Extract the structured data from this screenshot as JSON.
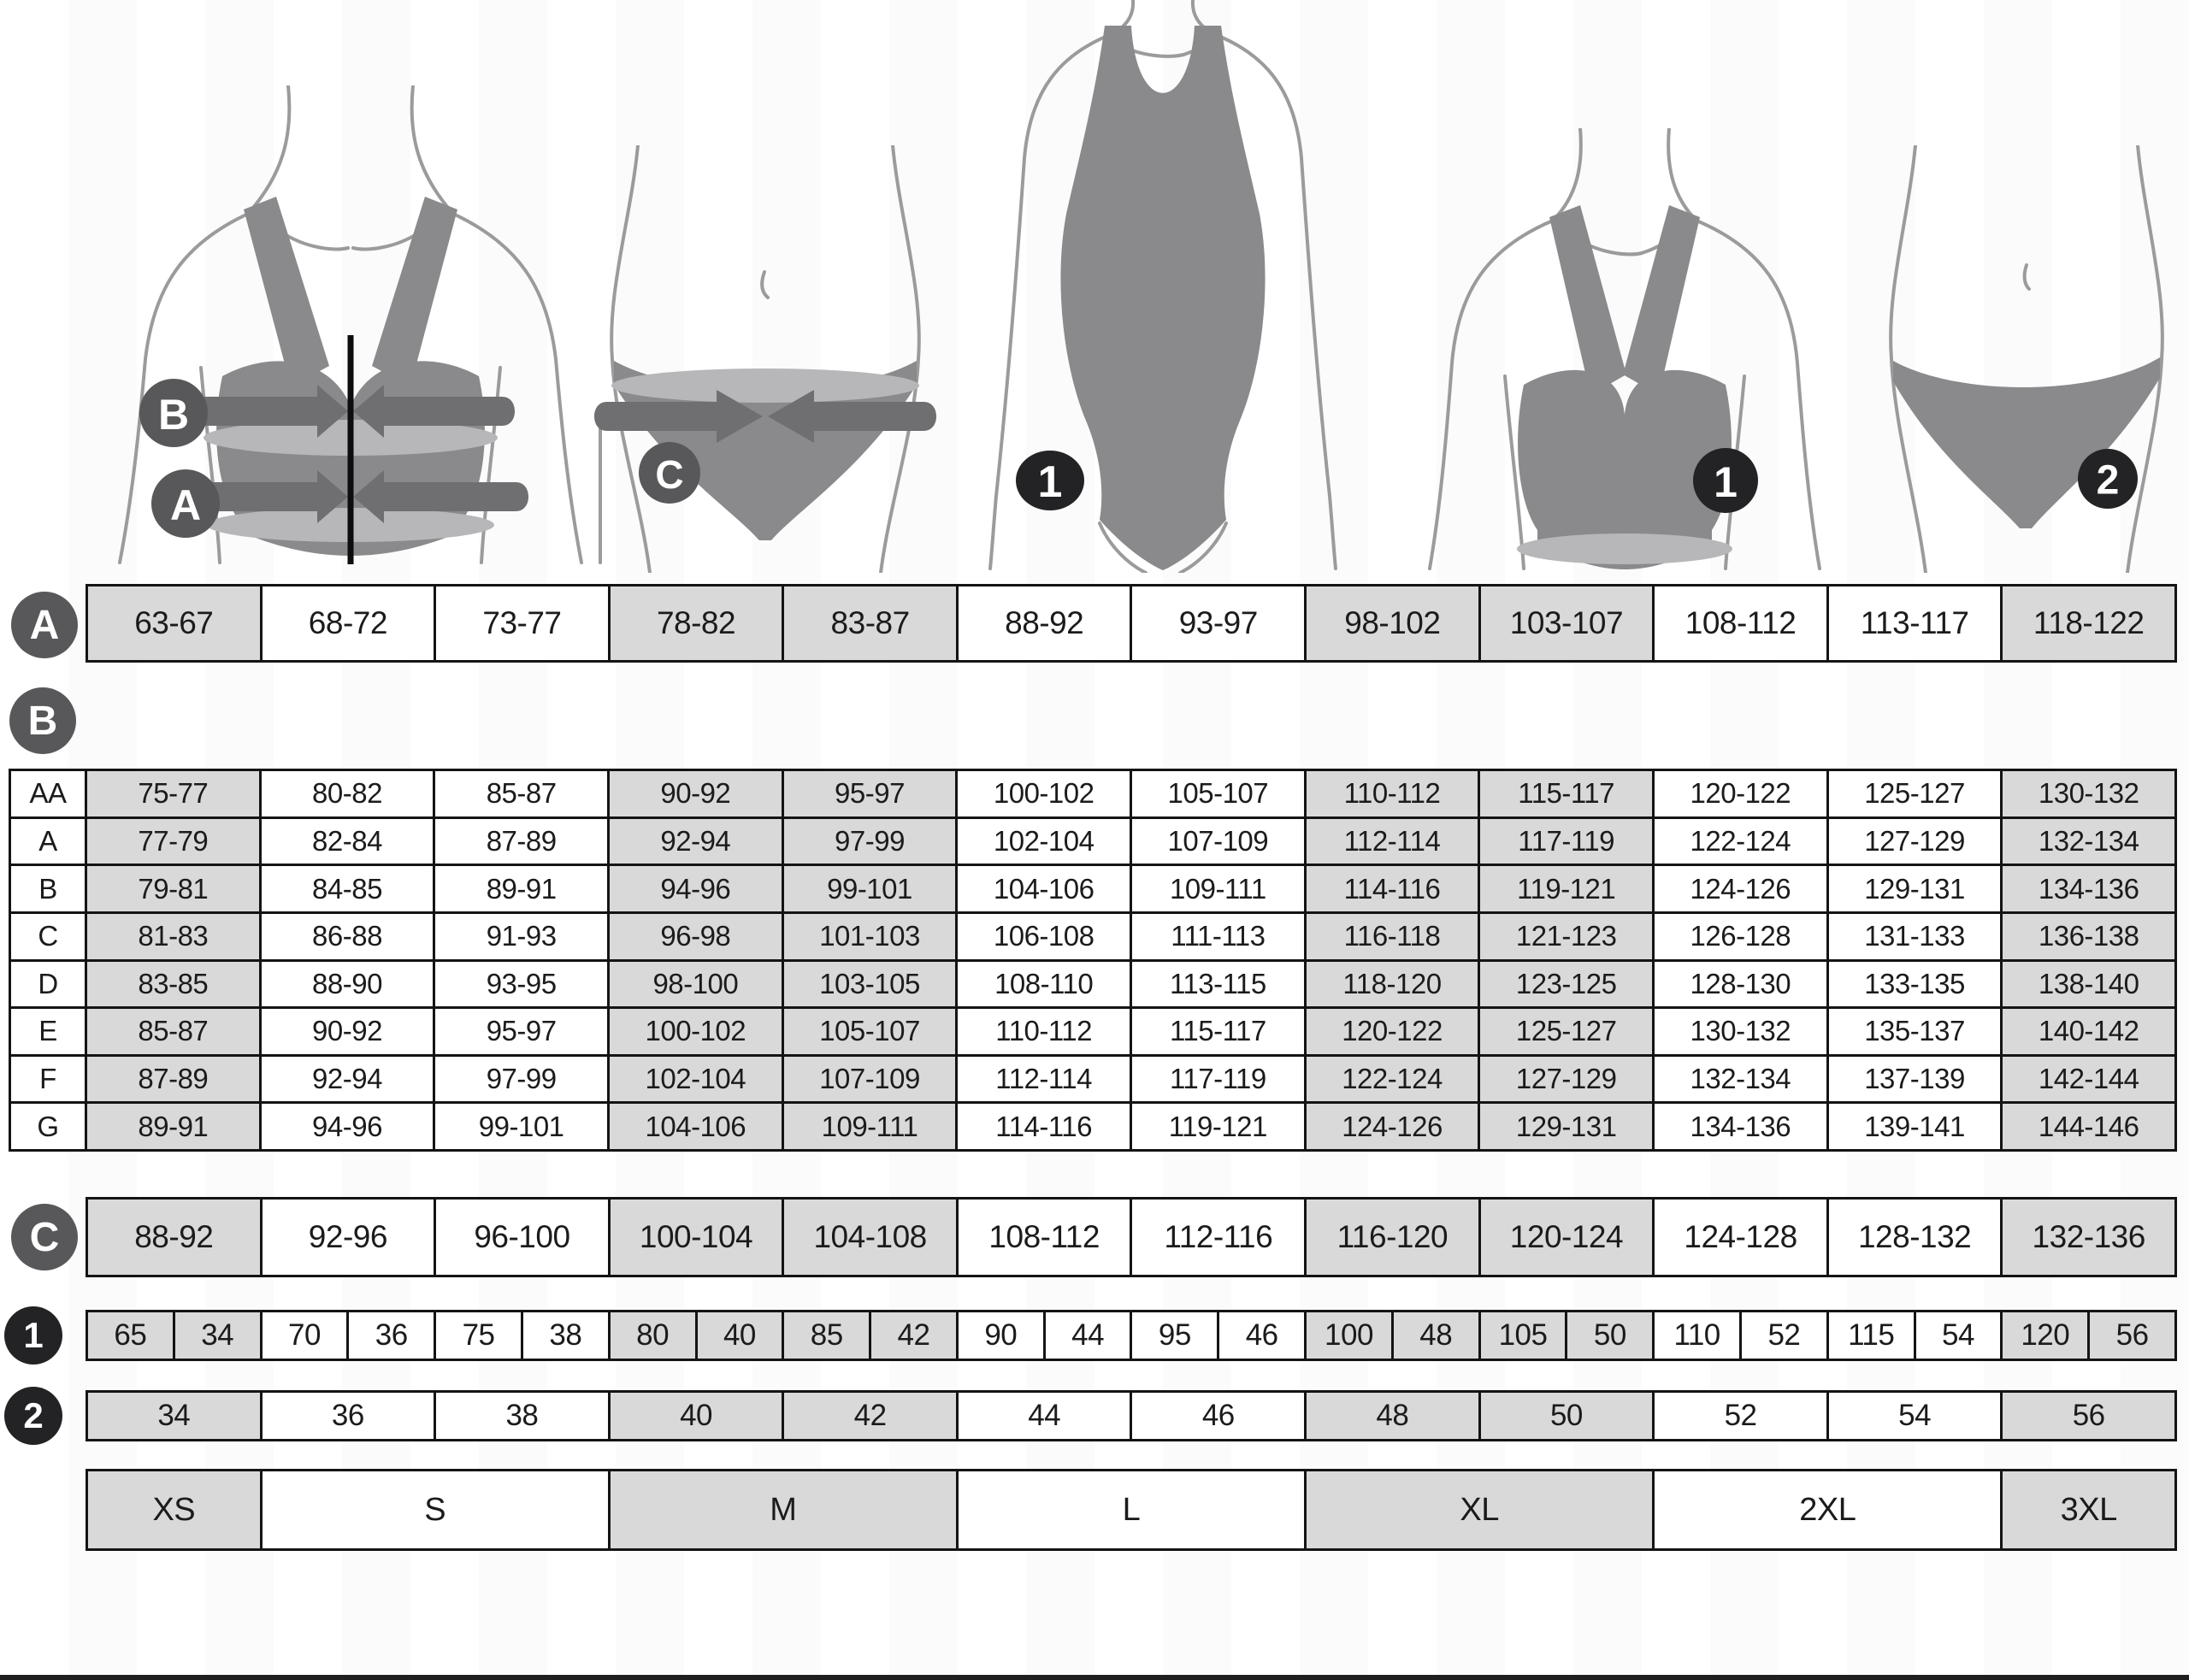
{
  "legend": {
    "a": "A",
    "b": "B",
    "c": "C",
    "one": "1",
    "two": "2"
  },
  "figures": [
    {
      "name": "bra-with-measurement-bands",
      "badges": [
        "B",
        "A"
      ]
    },
    {
      "name": "hips-with-measurement-band",
      "badges": [
        "C"
      ]
    },
    {
      "name": "one-piece-swimsuit",
      "badges": [
        "1"
      ]
    },
    {
      "name": "bra",
      "badges": [
        "1"
      ]
    },
    {
      "name": "briefs",
      "badges": [
        "2"
      ]
    }
  ],
  "tables": {
    "shading": [
      1,
      0,
      0,
      1,
      1,
      0,
      0,
      1,
      1,
      0,
      0,
      1
    ],
    "underbust_row": {
      "label": "A",
      "values": [
        "63-67",
        "68-72",
        "73-77",
        "78-82",
        "83-87",
        "88-92",
        "93-97",
        "98-102",
        "103-107",
        "108-112",
        "113-117",
        "118-122"
      ]
    },
    "cup_table": {
      "label": "B",
      "rows": [
        {
          "label": "AA",
          "values": [
            "75-77",
            "80-82",
            "85-87",
            "90-92",
            "95-97",
            "100-102",
            "105-107",
            "110-112",
            "115-117",
            "120-122",
            "125-127",
            "130-132"
          ]
        },
        {
          "label": "A",
          "values": [
            "77-79",
            "82-84",
            "87-89",
            "92-94",
            "97-99",
            "102-104",
            "107-109",
            "112-114",
            "117-119",
            "122-124",
            "127-129",
            "132-134"
          ]
        },
        {
          "label": "B",
          "values": [
            "79-81",
            "84-85",
            "89-91",
            "94-96",
            "99-101",
            "104-106",
            "109-111",
            "114-116",
            "119-121",
            "124-126",
            "129-131",
            "134-136"
          ]
        },
        {
          "label": "C",
          "values": [
            "81-83",
            "86-88",
            "91-93",
            "96-98",
            "101-103",
            "106-108",
            "111-113",
            "116-118",
            "121-123",
            "126-128",
            "131-133",
            "136-138"
          ]
        },
        {
          "label": "D",
          "values": [
            "83-85",
            "88-90",
            "93-95",
            "98-100",
            "103-105",
            "108-110",
            "113-115",
            "118-120",
            "123-125",
            "128-130",
            "133-135",
            "138-140"
          ]
        },
        {
          "label": "E",
          "values": [
            "85-87",
            "90-92",
            "95-97",
            "100-102",
            "105-107",
            "110-112",
            "115-117",
            "120-122",
            "125-127",
            "130-132",
            "135-137",
            "140-142"
          ]
        },
        {
          "label": "F",
          "values": [
            "87-89",
            "92-94",
            "97-99",
            "102-104",
            "107-109",
            "112-114",
            "117-119",
            "122-124",
            "127-129",
            "132-134",
            "137-139",
            "142-144"
          ]
        },
        {
          "label": "G",
          "values": [
            "89-91",
            "94-96",
            "99-101",
            "104-106",
            "109-111",
            "114-116",
            "119-121",
            "124-126",
            "129-131",
            "134-136",
            "139-141",
            "144-146"
          ]
        }
      ]
    },
    "hips_row": {
      "label": "C",
      "values": [
        "88-92",
        "92-96",
        "96-100",
        "100-104",
        "104-108",
        "108-112",
        "112-116",
        "116-120",
        "120-124",
        "124-128",
        "128-132",
        "132-136"
      ]
    },
    "bra_size_row": {
      "label": "1",
      "pairs": [
        [
          "65",
          "34"
        ],
        [
          "70",
          "36"
        ],
        [
          "75",
          "38"
        ],
        [
          "80",
          "40"
        ],
        [
          "85",
          "42"
        ],
        [
          "90",
          "44"
        ],
        [
          "95",
          "46"
        ],
        [
          "100",
          "48"
        ],
        [
          "105",
          "50"
        ],
        [
          "110",
          "52"
        ],
        [
          "115",
          "54"
        ],
        [
          "120",
          "56"
        ]
      ]
    },
    "brief_size_row": {
      "label": "2",
      "values": [
        "34",
        "36",
        "38",
        "40",
        "42",
        "44",
        "46",
        "48",
        "50",
        "52",
        "54",
        "56"
      ]
    },
    "sizes_row": {
      "cells": [
        {
          "label": "XS",
          "span": 1
        },
        {
          "label": "S",
          "span": 2
        },
        {
          "label": "M",
          "span": 2
        },
        {
          "label": "L",
          "span": 2
        },
        {
          "label": "XL",
          "span": 2
        },
        {
          "label": "2XL",
          "span": 2
        },
        {
          "label": "3XL",
          "span": 1
        }
      ]
    }
  },
  "colors": {
    "cell_gray": "#d9d9d9",
    "grid_line": "#141414",
    "badge_gray": "#58585a",
    "badge_dark": "#232325",
    "garment": "#8a8a8d",
    "band_light": "#b7b7b9",
    "band_dark": "#6f6f72",
    "outline": "#9b9b9b"
  }
}
